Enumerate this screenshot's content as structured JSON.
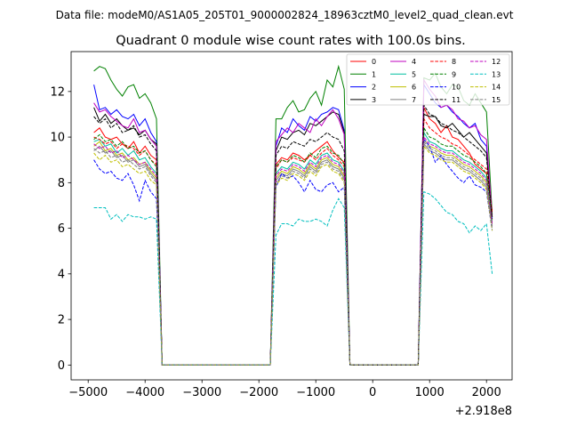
{
  "chart_data": {
    "type": "line",
    "suptitle": "Data file: modeM0/AS1A05_205T01_9000002824_18963cztM0_level2_quad_clean.evt",
    "title": "Quadrant 0 module wise count rates with 100.0s bins.",
    "xlabel": "",
    "ylabel": "",
    "offset_label": "+2.918e8",
    "xlim": [
      -5300,
      2450
    ],
    "ylim": [
      -0.65,
      13.75
    ],
    "xticks": [
      -5000,
      -4000,
      -3000,
      -2000,
      -1000,
      0,
      1000,
      2000
    ],
    "xtick_labels": [
      "−5000",
      "−4000",
      "−3000",
      "−2000",
      "−1000",
      "0",
      "1000",
      "2000"
    ],
    "yticks": [
      0,
      2,
      4,
      6,
      8,
      10,
      12
    ],
    "ytick_labels": [
      "0",
      "2",
      "4",
      "6",
      "8",
      "10",
      "12"
    ],
    "grid": false,
    "legend_position": "top-right",
    "legend_columns": 4,
    "x_segments": [
      {
        "start": -4900,
        "end": -3800,
        "step": 100
      },
      {
        "start": -1700,
        "end": -500,
        "step": 100
      },
      {
        "start": 900,
        "end": 2100,
        "step": 100
      }
    ],
    "series": [
      {
        "name": "0",
        "color": "#ff0000",
        "dash": "solid",
        "seg": [
          [
            10.2,
            10.4,
            10.0,
            9.9,
            10.0,
            9.7,
            9.5,
            9.8,
            9.3,
            9.6,
            9.2,
            9.0
          ],
          [
            8.8,
            9.1,
            9.0,
            9.3,
            9.2,
            9.0,
            9.2,
            9.4,
            9.6,
            9.8,
            9.4,
            9.1,
            8.9
          ],
          [
            11.3,
            10.8,
            10.6,
            10.2,
            10.5,
            10.0,
            9.9,
            9.6,
            9.3,
            8.8,
            8.6,
            8.4,
            6.8
          ]
        ]
      },
      {
        "name": "1",
        "color": "#008000",
        "dash": "solid",
        "seg": [
          [
            12.9,
            13.1,
            13.0,
            12.5,
            12.1,
            11.8,
            12.2,
            12.3,
            11.7,
            11.9,
            11.5,
            10.8
          ],
          [
            10.8,
            10.8,
            11.3,
            11.6,
            11.1,
            11.2,
            11.7,
            12.0,
            11.4,
            12.5,
            12.2,
            13.1,
            12.1
          ],
          [
            12.6,
            12.5,
            12.8,
            12.2,
            11.9,
            12.3,
            12.2,
            11.6,
            11.4,
            11.9,
            11.5,
            11.1,
            6.6
          ]
        ]
      },
      {
        "name": "2",
        "color": "#0000ff",
        "dash": "solid",
        "seg": [
          [
            12.3,
            11.2,
            11.3,
            11.0,
            11.2,
            10.9,
            10.8,
            11.0,
            10.5,
            10.8,
            10.2,
            9.8
          ],
          [
            9.6,
            10.4,
            10.2,
            10.8,
            10.5,
            10.3,
            10.9,
            10.7,
            11.0,
            11.1,
            11.3,
            11.2,
            10.3
          ],
          [
            12.3,
            11.9,
            11.5,
            11.3,
            11.4,
            11.1,
            10.9,
            10.6,
            10.4,
            10.6,
            9.9,
            9.6,
            6.4
          ]
        ]
      },
      {
        "name": "3",
        "color": "#000000",
        "dash": "solid",
        "seg": [
          [
            11.3,
            10.7,
            11.0,
            10.6,
            10.8,
            10.5,
            10.3,
            10.4,
            10.1,
            10.3,
            9.9,
            9.7
          ],
          [
            9.4,
            10.0,
            9.9,
            10.2,
            10.3,
            10.1,
            10.6,
            10.5,
            10.7,
            10.9,
            11.1,
            11.0,
            10.2
          ],
          [
            11.0,
            10.9,
            10.9,
            10.5,
            10.4,
            10.6,
            10.3,
            10.0,
            10.2,
            9.9,
            9.6,
            9.3,
            6.5
          ]
        ]
      },
      {
        "name": "4",
        "color": "#bf00bf",
        "dash": "solid",
        "seg": [
          [
            11.5,
            11.1,
            11.2,
            10.9,
            10.7,
            10.5,
            10.4,
            10.8,
            10.2,
            10.3,
            9.9,
            9.6
          ],
          [
            9.8,
            10.1,
            10.4,
            10.2,
            10.6,
            10.4,
            10.2,
            10.8,
            10.5,
            10.9,
            11.2,
            10.8,
            10.1
          ],
          [
            12.5,
            12.1,
            11.8,
            11.3,
            11.4,
            11.2,
            10.8,
            10.7,
            10.4,
            10.5,
            10.1,
            9.9,
            6.5
          ]
        ]
      },
      {
        "name": "5",
        "color": "#00bfa0",
        "dash": "solid",
        "seg": [
          [
            9.8,
            9.9,
            9.6,
            9.7,
            9.3,
            9.5,
            9.2,
            9.4,
            9.0,
            9.1,
            8.7,
            8.4
          ],
          [
            8.4,
            8.7,
            8.6,
            8.9,
            8.8,
            8.6,
            9.0,
            8.8,
            9.2,
            9.3,
            9.0,
            8.9,
            8.5
          ],
          [
            10.2,
            9.8,
            9.7,
            9.5,
            9.4,
            9.4,
            9.2,
            9.0,
            8.9,
            8.7,
            8.5,
            8.2,
            6.3
          ]
        ]
      },
      {
        "name": "6",
        "color": "#bfbf00",
        "dash": "solid",
        "seg": [
          [
            9.6,
            9.8,
            9.4,
            9.5,
            9.2,
            9.3,
            9.0,
            9.1,
            8.8,
            8.9,
            8.5,
            8.2
          ],
          [
            8.2,
            8.5,
            8.4,
            8.7,
            8.6,
            8.4,
            8.8,
            8.6,
            9.0,
            9.1,
            8.8,
            8.7,
            8.3
          ],
          [
            9.9,
            9.6,
            9.5,
            9.3,
            9.2,
            9.2,
            9.0,
            8.8,
            8.7,
            8.5,
            8.3,
            8.0,
            6.2
          ]
        ]
      },
      {
        "name": "7",
        "color": "#808080",
        "dash": "solid",
        "seg": [
          [
            9.4,
            9.6,
            9.3,
            9.4,
            9.1,
            9.2,
            8.9,
            9.0,
            8.7,
            8.8,
            8.4,
            8.1
          ],
          [
            8.1,
            8.4,
            8.3,
            8.6,
            8.5,
            8.3,
            8.7,
            8.5,
            8.9,
            9.0,
            8.7,
            8.6,
            8.2
          ],
          [
            9.7,
            9.4,
            9.3,
            9.1,
            9.0,
            9.0,
            8.8,
            8.6,
            8.5,
            8.3,
            8.1,
            7.8,
            6.1
          ]
        ]
      },
      {
        "name": "8",
        "color": "#ff0000",
        "dash": "dashed",
        "seg": [
          [
            10.0,
            9.9,
            9.7,
            9.8,
            9.5,
            9.7,
            9.6,
            9.5,
            9.2,
            9.4,
            9.0,
            8.8
          ],
          [
            8.6,
            9.0,
            8.9,
            9.1,
            9.0,
            8.9,
            9.2,
            9.0,
            9.3,
            9.5,
            9.2,
            9.0,
            8.7
          ],
          [
            10.8,
            10.4,
            10.2,
            10.0,
            9.9,
            9.7,
            9.6,
            9.4,
            9.2,
            9.0,
            8.8,
            8.6,
            6.7
          ]
        ]
      },
      {
        "name": "9",
        "color": "#008000",
        "dash": "dashed",
        "seg": [
          [
            9.9,
            10.1,
            9.8,
            9.9,
            9.6,
            9.8,
            9.5,
            9.6,
            9.3,
            9.4,
            9.0,
            8.7
          ],
          [
            8.7,
            9.0,
            8.9,
            9.2,
            9.1,
            8.9,
            9.3,
            9.1,
            9.5,
            9.6,
            9.3,
            9.2,
            8.8
          ],
          [
            10.4,
            10.0,
            9.9,
            9.7,
            9.6,
            9.6,
            9.4,
            9.2,
            9.1,
            8.9,
            8.7,
            8.4,
            6.5
          ]
        ]
      },
      {
        "name": "10",
        "color": "#0000ff",
        "dash": "dashed",
        "seg": [
          [
            9.0,
            8.6,
            8.4,
            8.5,
            8.2,
            8.1,
            8.4,
            7.9,
            7.2,
            8.1,
            7.6,
            7.3
          ],
          [
            7.8,
            8.4,
            8.2,
            8.3,
            8.0,
            7.6,
            8.1,
            7.7,
            7.6,
            7.9,
            8.0,
            7.6,
            7.8
          ],
          [
            9.9,
            9.6,
            8.9,
            9.2,
            8.8,
            8.5,
            8.2,
            8.0,
            8.3,
            7.9,
            7.8,
            7.6,
            5.9
          ]
        ]
      },
      {
        "name": "11",
        "color": "#000000",
        "dash": "dashed",
        "seg": [
          [
            10.9,
            10.6,
            10.8,
            10.4,
            10.6,
            10.2,
            10.3,
            10.5,
            10.0,
            10.1,
            9.7,
            9.4
          ],
          [
            9.2,
            9.6,
            9.5,
            9.8,
            9.7,
            9.6,
            9.9,
            9.8,
            10.0,
            10.2,
            10.0,
            9.9,
            9.4
          ],
          [
            11.4,
            11.0,
            10.9,
            10.6,
            10.5,
            10.3,
            10.2,
            10.0,
            9.8,
            9.6,
            9.4,
            9.1,
            6.4
          ]
        ]
      },
      {
        "name": "12",
        "color": "#bf00bf",
        "dash": "dashed",
        "seg": [
          [
            9.7,
            9.5,
            9.6,
            9.3,
            9.4,
            9.1,
            9.2,
            9.0,
            8.8,
            8.9,
            8.6,
            8.3
          ],
          [
            8.3,
            8.6,
            8.5,
            8.8,
            8.7,
            8.5,
            8.9,
            8.7,
            9.1,
            9.2,
            8.9,
            8.8,
            8.4
          ],
          [
            10.0,
            9.7,
            9.6,
            9.4,
            9.3,
            9.3,
            9.1,
            8.9,
            8.8,
            8.6,
            8.4,
            8.1,
            6.2
          ]
        ]
      },
      {
        "name": "13",
        "color": "#00bfbf",
        "dash": "dashed",
        "seg": [
          [
            6.9,
            6.9,
            6.9,
            6.4,
            6.6,
            6.3,
            6.6,
            6.5,
            6.5,
            6.4,
            6.5,
            6.4
          ],
          [
            5.7,
            6.2,
            6.2,
            6.1,
            6.4,
            6.3,
            6.3,
            6.4,
            6.3,
            6.1,
            6.8,
            7.3,
            6.9
          ],
          [
            7.6,
            7.5,
            7.3,
            7.0,
            6.7,
            6.6,
            6.3,
            6.2,
            5.8,
            6.1,
            5.9,
            6.2,
            4.0
          ]
        ]
      },
      {
        "name": "14",
        "color": "#bfbf00",
        "dash": "dashed",
        "seg": [
          [
            9.3,
            9.0,
            9.2,
            8.9,
            9.0,
            8.7,
            8.8,
            8.6,
            8.4,
            8.5,
            8.1,
            7.9
          ],
          [
            7.9,
            8.2,
            8.1,
            8.4,
            8.3,
            8.1,
            8.5,
            8.3,
            8.7,
            8.8,
            8.5,
            8.4,
            8.0
          ],
          [
            9.6,
            9.3,
            9.2,
            9.0,
            8.9,
            8.9,
            8.7,
            8.5,
            8.4,
            8.2,
            8.0,
            7.7,
            5.9
          ]
        ]
      },
      {
        "name": "15",
        "color": "#808080",
        "dash": "dashed",
        "seg": [
          [
            9.5,
            9.3,
            9.4,
            9.1,
            9.2,
            8.9,
            9.0,
            8.8,
            8.6,
            8.7,
            8.3,
            8.0
          ],
          [
            8.0,
            8.3,
            8.2,
            8.5,
            8.4,
            8.2,
            8.6,
            8.4,
            8.8,
            8.9,
            8.6,
            8.5,
            8.1
          ],
          [
            9.8,
            9.5,
            9.4,
            9.2,
            9.1,
            9.1,
            8.9,
            8.7,
            8.6,
            8.4,
            8.2,
            7.9,
            6.0
          ]
        ]
      }
    ]
  }
}
